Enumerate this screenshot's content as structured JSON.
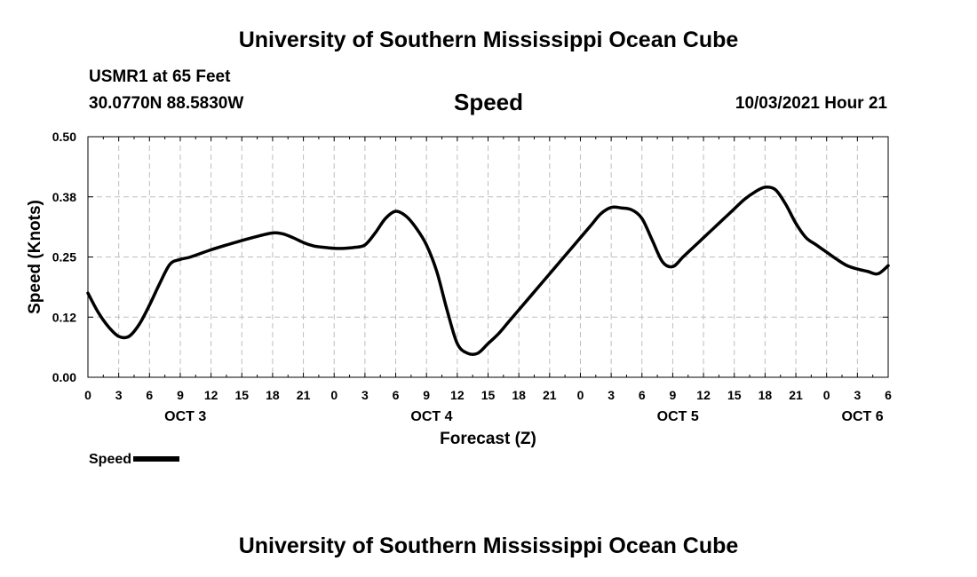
{
  "header": {
    "title": "University of Southern Mississippi Ocean Cube",
    "station": "USMR1 at 65 Feet",
    "coords": "30.0770N  88.5830W",
    "subtitle": "Speed",
    "datetime": "10/03/2021 Hour 21"
  },
  "footer": {
    "title": "University of Southern Mississippi Ocean Cube"
  },
  "legend": {
    "label": "Speed",
    "color": "#000000"
  },
  "chart_data": {
    "type": "line",
    "title": "Speed",
    "xlabel": "Forecast (Z)",
    "ylabel": "Speed (Knots)",
    "xlim": [
      0,
      78
    ],
    "ylim": [
      0,
      0.5
    ],
    "grid": true,
    "x_ticks": [
      0,
      3,
      6,
      9,
      12,
      15,
      18,
      21,
      24,
      27,
      30,
      33,
      36,
      39,
      42,
      45,
      48,
      51,
      54,
      57,
      60,
      63,
      66,
      69,
      72,
      75,
      78
    ],
    "x_tick_labels": [
      "0",
      "3",
      "6",
      "9",
      "12",
      "15",
      "18",
      "21",
      "0",
      "3",
      "6",
      "9",
      "12",
      "15",
      "18",
      "21",
      "0",
      "3",
      "6",
      "9",
      "12",
      "15",
      "18",
      "21",
      "0",
      "3",
      "6"
    ],
    "y_ticks": [
      0,
      0.125,
      0.25,
      0.375,
      0.5
    ],
    "y_tick_labels": [
      "0.00",
      "0.12",
      "0.25",
      "0.38",
      "0.50"
    ],
    "day_labels": [
      {
        "label": "OCT 3",
        "x": 9.5
      },
      {
        "label": "OCT 4",
        "x": 33.5
      },
      {
        "label": "OCT 5",
        "x": 57.5
      },
      {
        "label": "OCT 6",
        "x": 75.5
      }
    ],
    "series": [
      {
        "name": "Speed",
        "color": "#000000",
        "x": [
          0,
          1,
          2,
          3,
          4,
          5,
          6,
          7,
          8,
          9,
          10,
          12,
          14,
          16,
          18,
          19,
          20,
          21,
          22,
          23,
          24,
          25,
          26,
          27,
          28,
          29,
          30,
          31,
          32,
          33,
          34,
          35,
          36,
          37,
          38,
          39,
          40,
          41,
          42,
          43,
          44,
          45,
          46,
          47,
          48,
          49,
          50,
          51,
          52,
          53,
          54,
          55,
          56,
          57,
          58,
          59,
          60,
          61,
          62,
          63,
          64,
          65,
          66,
          67,
          68,
          69,
          70,
          71,
          72,
          73,
          74,
          75,
          76,
          77,
          78
        ],
        "values": [
          0.175,
          0.135,
          0.105,
          0.085,
          0.085,
          0.11,
          0.15,
          0.195,
          0.235,
          0.245,
          0.25,
          0.265,
          0.278,
          0.29,
          0.3,
          0.298,
          0.29,
          0.28,
          0.273,
          0.27,
          0.268,
          0.268,
          0.27,
          0.275,
          0.3,
          0.33,
          0.345,
          0.335,
          0.31,
          0.275,
          0.22,
          0.14,
          0.07,
          0.05,
          0.05,
          0.07,
          0.09,
          0.115,
          0.14,
          0.165,
          0.19,
          0.215,
          0.24,
          0.265,
          0.29,
          0.315,
          0.34,
          0.353,
          0.352,
          0.348,
          0.33,
          0.285,
          0.24,
          0.23,
          0.25,
          0.27,
          0.29,
          0.31,
          0.33,
          0.35,
          0.37,
          0.385,
          0.395,
          0.39,
          0.36,
          0.32,
          0.29,
          0.275,
          0.26,
          0.245,
          0.232,
          0.225,
          0.22,
          0.215,
          0.232
        ]
      }
    ]
  }
}
